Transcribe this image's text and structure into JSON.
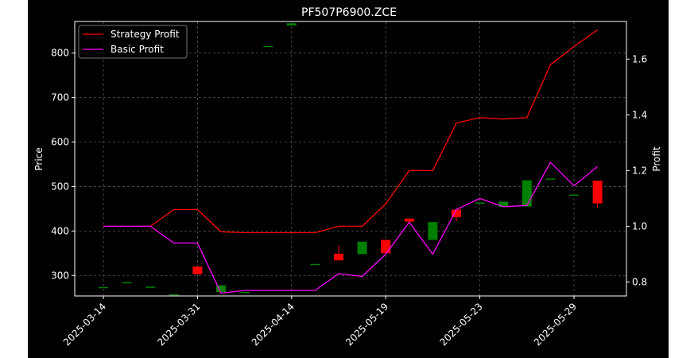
{
  "chart_data": {
    "type": "candlestick+line",
    "title": "PF507P6900.ZCE",
    "ylabel_left": "Price",
    "ylabel_right": "Profit",
    "xlabel": "",
    "ylim_left": [
      254,
      871
    ],
    "ylim_right": [
      0.75,
      1.735
    ],
    "left_ticks": [
      300,
      400,
      500,
      600,
      700,
      800
    ],
    "right_ticks": [
      0.8,
      1.0,
      1.2,
      1.4,
      1.6
    ],
    "x_tick_labels": [
      {
        "i": 0,
        "label": "2025-03-14"
      },
      {
        "i": 4,
        "label": "2025-03-31"
      },
      {
        "i": 8,
        "label": "2025-04-14"
      },
      {
        "i": 12,
        "label": "2025-05-19"
      },
      {
        "i": 16,
        "label": "2025-05-23"
      },
      {
        "i": 20,
        "label": "2025-05-29"
      }
    ],
    "legend_position": "top-left",
    "grid": true,
    "colors": {
      "background_figure": "#ffffff",
      "background_axes": "#000000",
      "strategy": "#ff0000",
      "basic": "#ff00ff",
      "up": "#008000",
      "down": "#ff0000",
      "grid": "#555555"
    },
    "candles": [
      {
        "open": 274,
        "high": 274,
        "low": 274,
        "close": 274
      },
      {
        "open": 285,
        "high": 285,
        "low": 285,
        "close": 285
      },
      {
        "open": 275,
        "high": 275,
        "low": 275,
        "close": 275
      },
      {
        "open": 258,
        "high": 258,
        "low": 258,
        "close": 258
      },
      {
        "open": 320,
        "high": 320,
        "low": 303,
        "close": 303
      },
      {
        "open": 263,
        "high": 278,
        "low": 263,
        "close": 278
      },
      {
        "open": 263,
        "high": 263,
        "low": 263,
        "close": 263
      },
      {
        "open": 816,
        "high": 816,
        "low": 816,
        "close": 816
      },
      {
        "open": 862,
        "high": 867,
        "low": 862,
        "close": 867
      },
      {
        "open": 326,
        "high": 326,
        "low": 326,
        "close": 326
      },
      {
        "open": 349,
        "high": 368,
        "low": 334,
        "close": 334
      },
      {
        "open": 348,
        "high": 376,
        "low": 348,
        "close": 376
      },
      {
        "open": 380,
        "high": 380,
        "low": 350,
        "close": 350
      },
      {
        "open": 428,
        "high": 428,
        "low": 421,
        "close": 421
      },
      {
        "open": 380,
        "high": 420,
        "low": 380,
        "close": 420
      },
      {
        "open": 448,
        "high": 448,
        "low": 422,
        "close": 431
      },
      {
        "open": 464,
        "high": 464,
        "low": 464,
        "close": 464
      },
      {
        "open": 454,
        "high": 466,
        "low": 454,
        "close": 466
      },
      {
        "open": 455,
        "high": 514,
        "low": 455,
        "close": 514
      },
      {
        "open": 518,
        "high": 518,
        "low": 518,
        "close": 518
      },
      {
        "open": 482,
        "high": 482,
        "low": 482,
        "close": 482
      },
      {
        "open": 513,
        "high": 513,
        "low": 452,
        "close": 462
      }
    ],
    "series": [
      {
        "name": "Strategy Profit",
        "values": [
          1.0,
          1.0,
          1.0,
          1.06,
          1.06,
          0.98,
          0.977,
          0.977,
          0.977,
          0.977,
          1.0,
          1.0,
          1.08,
          1.2,
          1.2,
          1.37,
          1.39,
          1.385,
          1.39,
          1.58,
          1.645,
          1.705
        ]
      },
      {
        "name": "Basic Profit",
        "values": [
          1.0,
          1.0,
          1.0,
          0.94,
          0.94,
          0.76,
          0.77,
          0.77,
          0.77,
          0.77,
          0.83,
          0.82,
          0.9,
          1.015,
          0.9,
          1.06,
          1.1,
          1.07,
          1.075,
          1.23,
          1.145,
          1.215
        ]
      }
    ]
  }
}
